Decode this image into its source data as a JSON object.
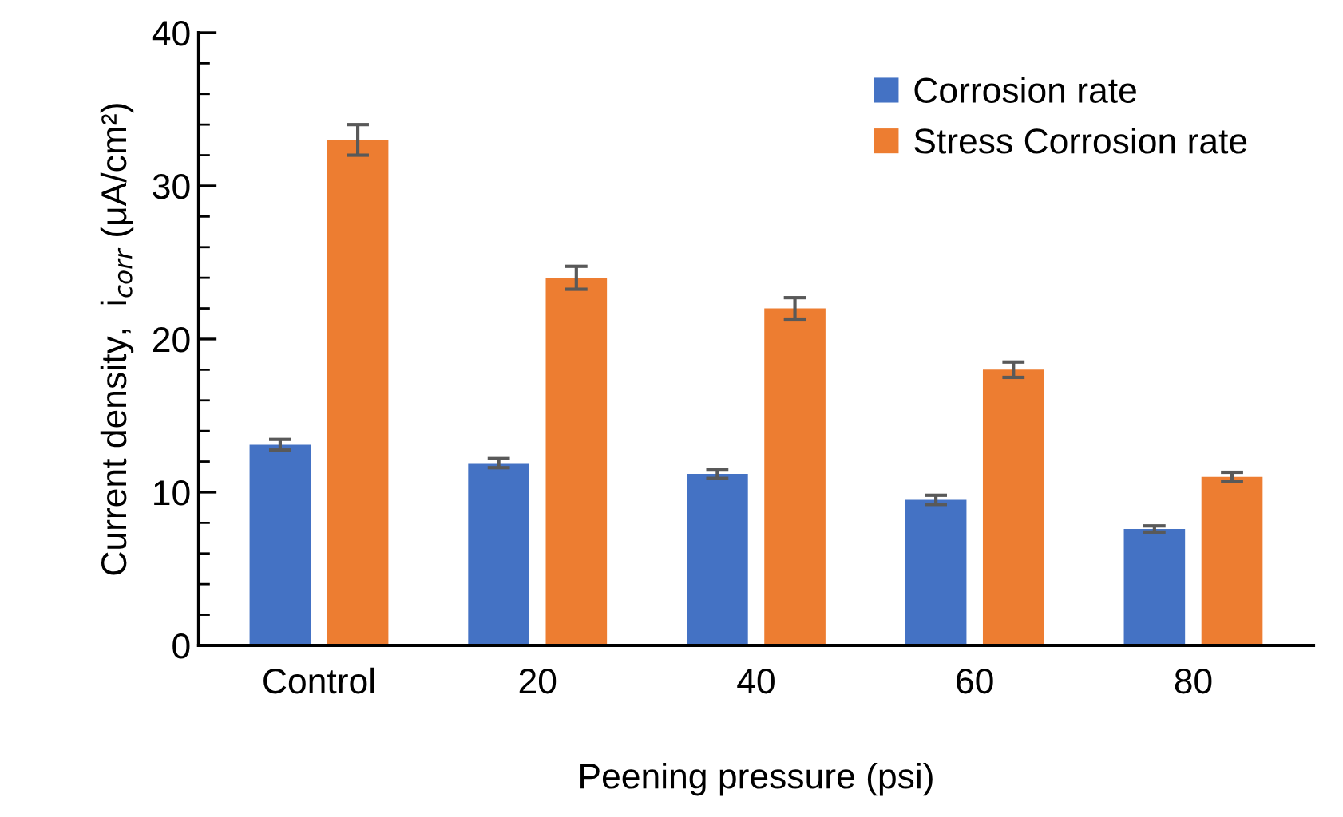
{
  "chart_data": {
    "type": "bar",
    "xlabel": "Peening pressure (psi)",
    "ylabel": "Current density,  i$_{corr}$ (μA/cm²)",
    "categories": [
      "Control",
      "20",
      "40",
      "60",
      "80"
    ],
    "series": [
      {
        "name": "Corrosion rate",
        "color": "#4472c4",
        "values": [
          13.1,
          11.9,
          11.2,
          9.5,
          7.6
        ],
        "errors": [
          0.35,
          0.3,
          0.3,
          0.3,
          0.2
        ]
      },
      {
        "name": "Stress Corrosion rate",
        "color": "#ed7d31",
        "values": [
          33,
          24,
          22,
          18,
          11
        ],
        "errors": [
          1,
          0.75,
          0.7,
          0.5,
          0.3
        ]
      }
    ],
    "ylim": [
      0,
      40
    ],
    "yticks": [
      0,
      10,
      20,
      30,
      40
    ],
    "grid": false,
    "legend": "top right"
  }
}
